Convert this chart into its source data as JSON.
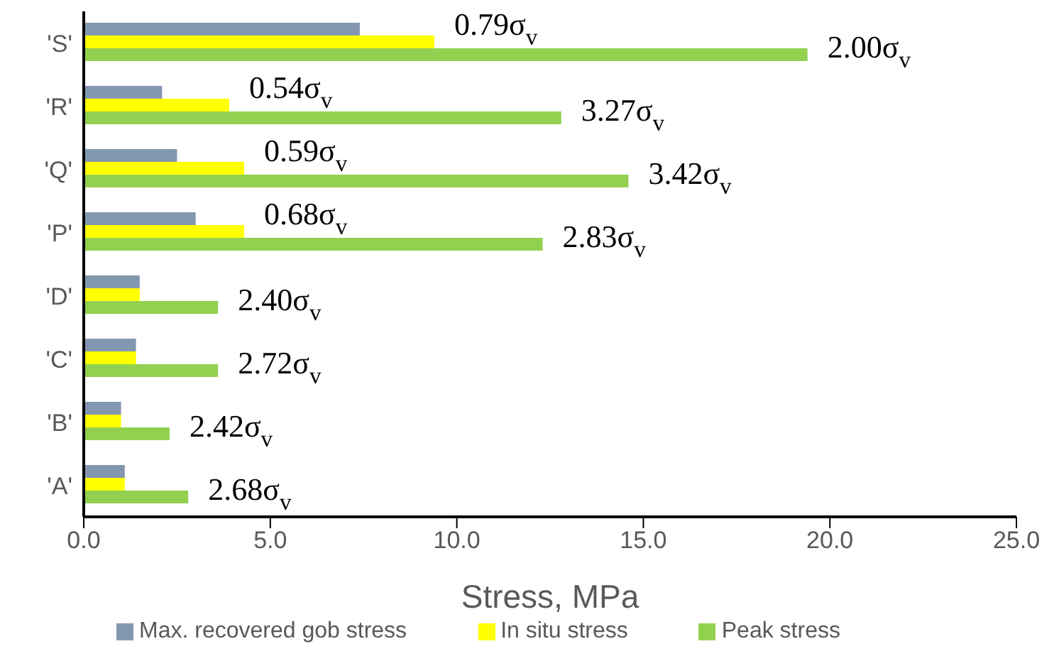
{
  "chart_data": {
    "type": "bar",
    "orientation": "horizontal",
    "xlabel": "Stress, MPa",
    "categories": [
      "'S'",
      "'R'",
      "'Q'",
      "'P'",
      "'D'",
      "'C'",
      "'B'",
      "'A'"
    ],
    "series": [
      {
        "name": "Max. recovered gob stress",
        "color": "#8497b0",
        "values": [
          7.4,
          2.1,
          2.5,
          3.0,
          1.5,
          1.4,
          1.0,
          1.1
        ]
      },
      {
        "name": "In situ stress",
        "color": "#ffff00",
        "values": [
          9.4,
          3.9,
          4.3,
          4.3,
          1.5,
          1.4,
          1.0,
          1.1
        ]
      },
      {
        "name": "Peak stress",
        "color": "#92d050",
        "values": [
          19.4,
          12.8,
          14.6,
          12.3,
          3.6,
          3.6,
          2.3,
          2.8
        ]
      }
    ],
    "annotations": [
      {
        "text": "0.79σ$_{v}$",
        "x": 9.4,
        "y": "'S'"
      },
      {
        "text": "2.00σ$_{v}$",
        "x": 19.4,
        "y": "'S'"
      },
      {
        "text": "0.54σ$_{v}$",
        "x": 3.9,
        "y": "'R'"
      },
      {
        "text": "3.27σ$_{v}$",
        "x": 12.8,
        "y": "'R'"
      },
      {
        "text": "0.59σ$_{v}$",
        "x": 4.3,
        "y": "'Q'"
      },
      {
        "text": "3.42σ$_{v}$",
        "x": 14.6,
        "y": "'Q'"
      },
      {
        "text": "0.68σ$_{v}$",
        "x": 4.3,
        "y": "'P'"
      },
      {
        "text": "2.83σ$_{v}$",
        "x": 12.3,
        "y": "'P'"
      },
      {
        "text": "2.40σ$_{v}$",
        "x": 3.6,
        "y": "'D'"
      },
      {
        "text": "2.72σ$_{v}$",
        "x": 3.6,
        "y": "'C'"
      },
      {
        "text": "2.42σ$_{v}$",
        "x": 2.3,
        "y": "'B'"
      },
      {
        "text": "2.68σ$_{v}$",
        "x": 2.8,
        "y": "'A'"
      }
    ],
    "xlim": [
      0,
      25
    ],
    "xticks": [
      {
        "value": 0,
        "label": "0.0"
      },
      {
        "value": 5,
        "label": "5.0"
      },
      {
        "value": 10,
        "label": "10.0"
      },
      {
        "value": 15,
        "label": "15.0"
      },
      {
        "value": 20,
        "label": "20.0"
      },
      {
        "value": 25,
        "label": "25.0"
      }
    ],
    "grid": false,
    "legend": "bottom"
  }
}
